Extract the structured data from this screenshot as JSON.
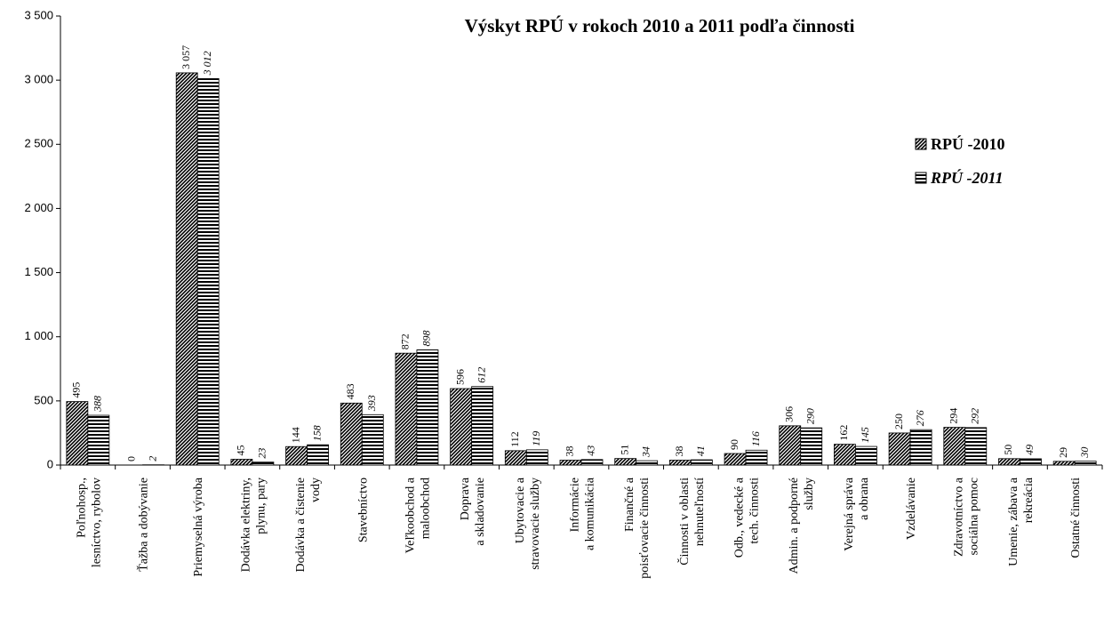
{
  "chart_data": {
    "type": "bar",
    "title": "Výskyt RPÚ v rokoch 2010 a 2011 podľa činnosti",
    "categories": [
      "Poľnohosp.,\nlesníctvo, rybolov",
      "Ťažba a dobývanie",
      "Priemyselná výroba",
      "Dodávka elektriny,\nplynu, pary",
      "Dodávka a čistenie\nvody",
      "Stavebníctvo",
      "Veľkoobchod a\nmaloobchod",
      "Doprava\na skladovanie",
      "Ubytovacie a\nstravovacie služby",
      "Informácie\na komunikácia",
      "Finančné a\npoisťovacie činnosti",
      "Činnosti v oblasti\nnehnuteľností",
      "Odb., vedecké a\ntech. činnosti",
      "Admin. a podporné\nslužby",
      "Verejná správa\na obrana",
      "Vzdelávanie",
      "Zdravotníctvo a\nsociálna pomoc",
      "Umenie, zábava a\nrekreácia",
      "Ostatné činnosti"
    ],
    "series": [
      {
        "name": "RPÚ -2010",
        "color": "#000000",
        "values": [
          495,
          0,
          3057,
          45,
          144,
          483,
          872,
          596,
          112,
          38,
          51,
          38,
          90,
          306,
          162,
          250,
          294,
          50,
          29
        ],
        "value_labels": [
          "495",
          "0",
          "3 057",
          "45",
          "144",
          "483",
          "872",
          "596",
          "112",
          "38",
          "51",
          "38",
          "90",
          "306",
          "162",
          "250",
          "294",
          "50",
          "29"
        ]
      },
      {
        "name": "RPÚ -2011",
        "color": "#000000",
        "values": [
          388,
          2,
          3012,
          23,
          158,
          393,
          898,
          612,
          119,
          43,
          34,
          41,
          116,
          290,
          145,
          276,
          292,
          49,
          30
        ],
        "value_labels": [
          "388",
          "2",
          "3 012",
          "23",
          "158",
          "393",
          "898",
          "612",
          "119",
          "43",
          "34",
          "41",
          "116",
          "290",
          "145",
          "276",
          "292",
          "49",
          "30"
        ]
      }
    ],
    "ylim": [
      0,
      3500
    ],
    "yticks": [
      0,
      500,
      {
        "value": 1000,
        "label": "1 000"
      },
      {
        "value": 1500,
        "label": "1 500"
      },
      {
        "value": 2000,
        "label": "2 000"
      },
      {
        "value": 2500,
        "label": "2 500"
      },
      {
        "value": 3000,
        "label": "3 000"
      },
      {
        "value": 3500,
        "label": "3 500"
      }
    ],
    "legend": "right"
  }
}
